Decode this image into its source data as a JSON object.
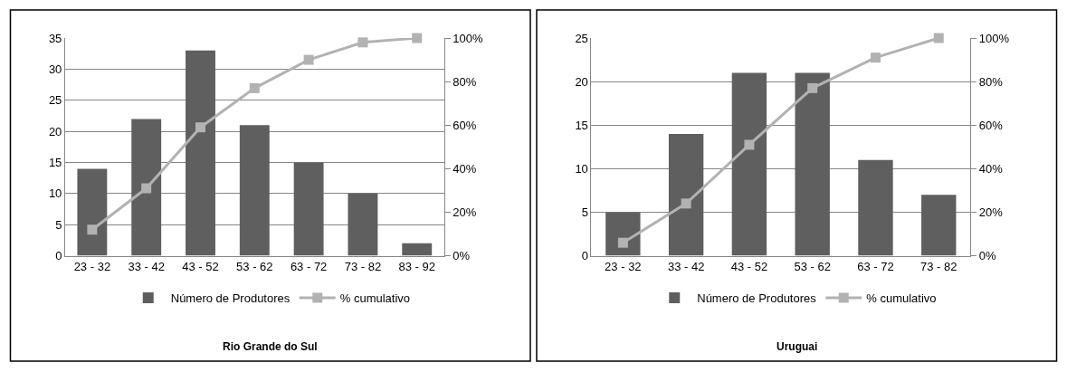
{
  "chart_data": [
    {
      "type": "bar",
      "title": "Rio Grande do Sul",
      "categories": [
        "23 - 32",
        "33 - 42",
        "43 - 52",
        "53 - 62",
        "63 - 72",
        "73 - 82",
        "83 - 92"
      ],
      "series": [
        {
          "name": "Número de Produtores",
          "color": "#5f5f5f",
          "values": [
            14,
            22,
            33,
            21,
            15,
            10,
            2
          ]
        },
        {
          "name": "% cumulativo",
          "type": "line",
          "axis": "y2",
          "color": "#b2b2b2",
          "marker": "square",
          "values": [
            12,
            31,
            59,
            77,
            90,
            98,
            100
          ]
        }
      ],
      "ylim": [
        0,
        35
      ],
      "yticks": [
        0,
        5,
        10,
        15,
        20,
        25,
        30,
        35
      ],
      "y2lim": [
        0,
        100
      ],
      "y2ticks": [
        {
          "value": 0,
          "label": "0%"
        },
        {
          "value": 20,
          "label": "20%"
        },
        {
          "value": 40,
          "label": "40%"
        },
        {
          "value": 60,
          "label": "60%"
        },
        {
          "value": 80,
          "label": "80%"
        },
        {
          "value": 100,
          "label": "100%"
        }
      ],
      "grid": "y",
      "legend": "bottom"
    },
    {
      "type": "bar",
      "title": "Uruguai",
      "categories": [
        "23 - 32",
        "33 - 42",
        "43 - 52",
        "53 - 62",
        "63 - 72",
        "73 - 82"
      ],
      "series": [
        {
          "name": "Número de Produtores",
          "color": "#5f5f5f",
          "values": [
            5,
            14,
            21,
            21,
            11,
            7
          ]
        },
        {
          "name": "% cumulativo",
          "type": "line",
          "axis": "y2",
          "color": "#b2b2b2",
          "marker": "square",
          "values": [
            6,
            24,
            51,
            77,
            91,
            100
          ]
        }
      ],
      "ylim": [
        0,
        25
      ],
      "yticks": [
        0,
        5,
        10,
        15,
        20,
        25
      ],
      "y2lim": [
        0,
        100
      ],
      "y2ticks": [
        {
          "value": 0,
          "label": "0%"
        },
        {
          "value": 20,
          "label": "20%"
        },
        {
          "value": 40,
          "label": "40%"
        },
        {
          "value": 60,
          "label": "60%"
        },
        {
          "value": 80,
          "label": "80%"
        },
        {
          "value": 100,
          "label": "100%"
        }
      ],
      "grid": "y",
      "legend": "bottom"
    }
  ]
}
